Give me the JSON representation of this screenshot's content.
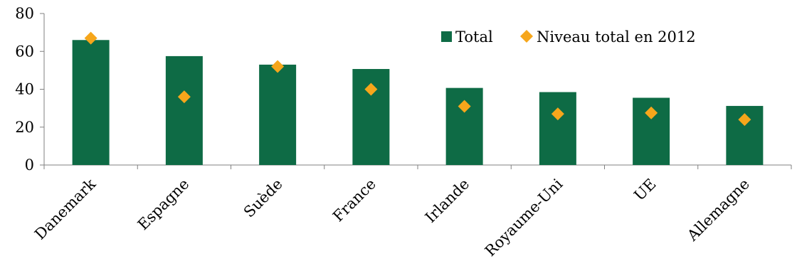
{
  "chart_data": {
    "type": "bar",
    "categories": [
      "Danemark",
      "Espagne",
      "Suède",
      "France",
      "Irlande",
      "Royaume-Uni",
      "UE",
      "Allemagne"
    ],
    "series": [
      {
        "name": "Total",
        "kind": "bar",
        "values": [
          66,
          57.5,
          53,
          50.7,
          40.7,
          38.5,
          35.5,
          31.2
        ]
      },
      {
        "name": "Niveau total en 2012",
        "kind": "marker",
        "values": [
          67,
          36,
          52,
          40,
          31,
          27,
          27.5,
          24
        ]
      }
    ],
    "ylim": [
      0,
      80
    ],
    "yticks": [
      0,
      20,
      40,
      60,
      80
    ],
    "legend_position": "top-right",
    "grid": false,
    "colors": {
      "bar": "#0E6B45",
      "marker": "#F6A61B",
      "axis": "#808080"
    }
  }
}
